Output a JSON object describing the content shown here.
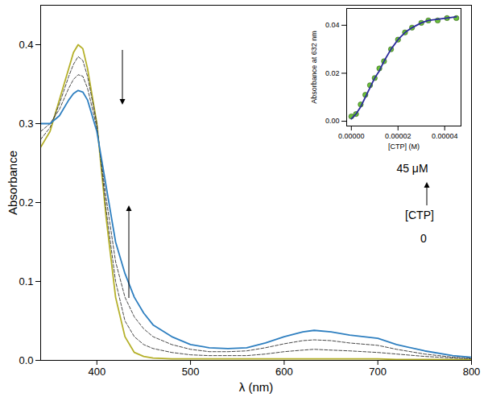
{
  "chart_data": [
    {
      "type": "line",
      "x_label": "λ (nm)",
      "y_label": "Absorbance",
      "annotations": [
        "45 μM",
        "[CTP]",
        "0"
      ],
      "xlim": [
        340,
        800
      ],
      "xticks": [
        400,
        500,
        600,
        700,
        800
      ],
      "ylim": [
        0,
        0.45
      ],
      "yticks": [
        {
          "value": 0,
          "label": "0.0"
        },
        0.1,
        0.2,
        0.3,
        0.4
      ],
      "x": [
        340,
        350,
        360,
        370,
        375,
        380,
        385,
        390,
        400,
        410,
        420,
        430,
        440,
        450,
        460,
        480,
        500,
        520,
        540,
        560,
        580,
        600,
        620,
        632,
        650,
        670,
        700,
        720,
        750,
        780,
        800
      ],
      "series": [
        {
          "color": "#b5b02a",
          "line_style": "solid",
          "values": [
            0.27,
            0.29,
            0.33,
            0.37,
            0.39,
            0.4,
            0.395,
            0.37,
            0.3,
            0.18,
            0.08,
            0.03,
            0.01,
            0.005,
            0.003,
            0.002,
            0.002,
            0.002,
            0.002,
            0.002,
            0.002,
            0.002,
            0.002,
            0.002,
            0.002,
            0.002,
            0.002,
            0.001,
            0.001,
            0.001,
            0.001
          ]
        },
        {
          "color": "#333333",
          "line_style": "dashed",
          "values": [
            0.28,
            0.295,
            0.325,
            0.36,
            0.375,
            0.385,
            0.38,
            0.36,
            0.3,
            0.19,
            0.1,
            0.05,
            0.03,
            0.02,
            0.015,
            0.01,
            0.007,
            0.006,
            0.006,
            0.006,
            0.008,
            0.011,
            0.013,
            0.014,
            0.013,
            0.012,
            0.01,
            0.008,
            0.005,
            0.003,
            0.002
          ]
        },
        {
          "color": "#333333",
          "line_style": "dashed",
          "values": [
            0.29,
            0.3,
            0.318,
            0.345,
            0.356,
            0.362,
            0.36,
            0.345,
            0.295,
            0.205,
            0.125,
            0.08,
            0.055,
            0.04,
            0.03,
            0.02,
            0.014,
            0.011,
            0.011,
            0.012,
            0.016,
            0.021,
            0.025,
            0.026,
            0.025,
            0.022,
            0.019,
            0.014,
            0.008,
            0.004,
            0.003
          ]
        },
        {
          "color": "#2e7fc0",
          "line_style": "solid",
          "values": [
            0.3,
            0.3,
            0.31,
            0.33,
            0.338,
            0.342,
            0.34,
            0.33,
            0.29,
            0.22,
            0.15,
            0.11,
            0.08,
            0.06,
            0.045,
            0.03,
            0.02,
            0.016,
            0.015,
            0.016,
            0.022,
            0.03,
            0.036,
            0.038,
            0.036,
            0.032,
            0.028,
            0.02,
            0.012,
            0.006,
            0.004
          ]
        }
      ]
    },
    {
      "type": "scatter",
      "x_label": "[CTP] (M)",
      "y_label": "Absorbance at 632 nm",
      "xlim": [
        -2e-06,
        4.7e-05
      ],
      "xticks": [
        {
          "value": 0,
          "label": "0.00000"
        },
        {
          "value": 2e-05,
          "label": "0.00002"
        },
        {
          "value": 4e-05,
          "label": "0.00004"
        }
      ],
      "ylim": [
        -0.002,
        0.047
      ],
      "yticks": [
        {
          "value": 0,
          "label": "0.00"
        },
        0.02,
        0.04
      ],
      "x": [
        0,
        2e-06,
        4e-06,
        6e-06,
        8e-06,
        1e-05,
        1.2e-05,
        1.4e-05,
        1.7e-05,
        2e-05,
        2.3e-05,
        2.6e-05,
        3e-05,
        3.3e-05,
        3.7e-05,
        4.1e-05,
        4.5e-05
      ],
      "series": [
        {
          "type": "scatter",
          "color": "#6cc03a",
          "marker": "circle",
          "values": [
            0.002,
            0.003,
            0.007,
            0.011,
            0.015,
            0.018,
            0.022,
            0.025,
            0.03,
            0.034,
            0.037,
            0.039,
            0.041,
            0.042,
            0.042,
            0.043,
            0.043
          ]
        },
        {
          "type": "line",
          "color": "#2b2b9c",
          "line_style": "solid",
          "values": [
            0.001,
            0.003,
            0.006,
            0.01,
            0.014,
            0.018,
            0.021,
            0.025,
            0.03,
            0.034,
            0.037,
            0.039,
            0.041,
            0.042,
            0.0425,
            0.043,
            0.0435
          ]
        }
      ]
    }
  ]
}
